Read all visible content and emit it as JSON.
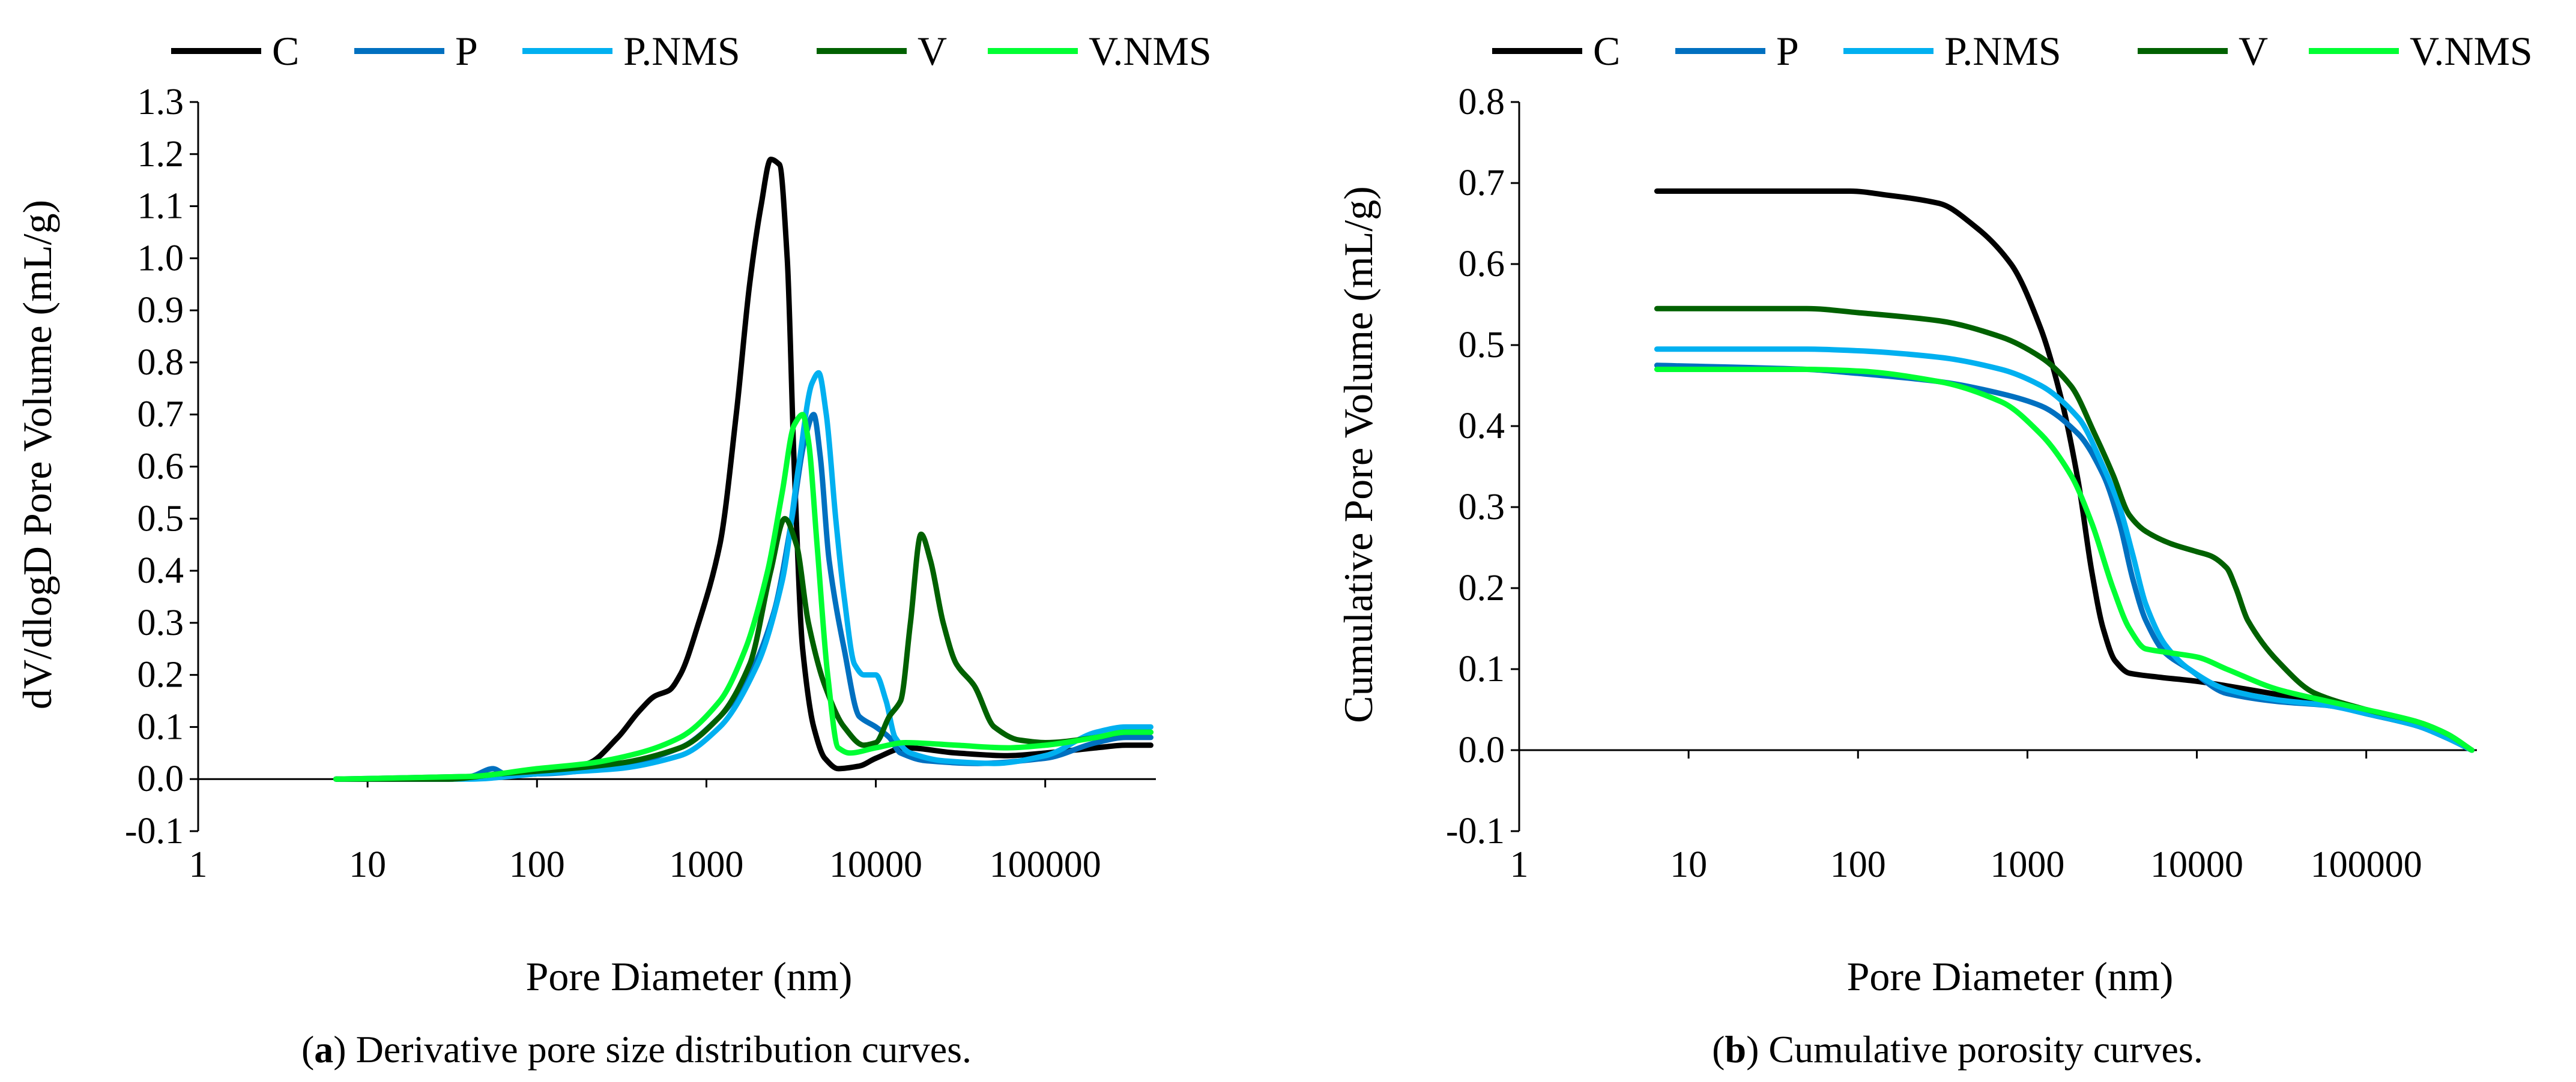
{
  "colors": {
    "C": "#000000",
    "P": "#0070C0",
    "P.NMS": "#00B0F0",
    "V": "#006100",
    "V.NMS": "#00FF33"
  },
  "chart_data": [
    {
      "type": "line",
      "caption_label": "a",
      "caption_text": ") Derivative pore size distribution curves.",
      "xlabel": "Pore Diameter (nm)",
      "ylabel": "dV/dlogD Pore Volume (mL/g)",
      "xscale": "log",
      "xlim": [
        1,
        450000
      ],
      "xticks": [
        1,
        10,
        100,
        1000,
        10000,
        100000
      ],
      "xtick_labels": [
        "1",
        "10",
        "100",
        "1000",
        "10000",
        "100000"
      ],
      "ylim": [
        -0.1,
        1.3
      ],
      "yticks": [
        -0.1,
        0.0,
        0.1,
        0.2,
        0.3,
        0.4,
        0.5,
        0.6,
        0.7,
        0.8,
        0.9,
        1.0,
        1.1,
        1.2,
        1.3
      ],
      "ytick_labels": [
        "-0.1",
        "0.0",
        "0.1",
        "0.2",
        "0.3",
        "0.4",
        "0.5",
        "0.6",
        "0.7",
        "0.8",
        "0.9",
        "1.0",
        "1.1",
        "1.2",
        "1.3"
      ],
      "grid": false,
      "legend_position": "top",
      "series": [
        {
          "name": "C",
          "points": [
            [
              6.5,
              0
            ],
            [
              30,
              0
            ],
            [
              50,
              0.005
            ],
            [
              100,
              0.01
            ],
            [
              200,
              0.03
            ],
            [
              300,
              0.08
            ],
            [
              400,
              0.13
            ],
            [
              500,
              0.16
            ],
            [
              600,
              0.17
            ],
            [
              700,
              0.2
            ],
            [
              900,
              0.3
            ],
            [
              1200,
              0.45
            ],
            [
              1500,
              0.7
            ],
            [
              1800,
              0.95
            ],
            [
              2100,
              1.1
            ],
            [
              2400,
              1.19
            ],
            [
              2700,
              1.18
            ],
            [
              3000,
              1.0
            ],
            [
              3300,
              0.6
            ],
            [
              3700,
              0.25
            ],
            [
              4300,
              0.1
            ],
            [
              5000,
              0.04
            ],
            [
              6000,
              0.02
            ],
            [
              8000,
              0.025
            ],
            [
              10000,
              0.04
            ],
            [
              15000,
              0.06
            ],
            [
              30000,
              0.05
            ],
            [
              60000,
              0.045
            ],
            [
              100000,
              0.05
            ],
            [
              200000,
              0.06
            ],
            [
              300000,
              0.065
            ],
            [
              420000,
              0.065
            ]
          ]
        },
        {
          "name": "P",
          "points": [
            [
              6.5,
              0
            ],
            [
              40,
              0.005
            ],
            [
              55,
              0.02
            ],
            [
              65,
              0.01
            ],
            [
              100,
              0.01
            ],
            [
              300,
              0.025
            ],
            [
              700,
              0.06
            ],
            [
              1200,
              0.12
            ],
            [
              1800,
              0.2
            ],
            [
              2500,
              0.32
            ],
            [
              3200,
              0.5
            ],
            [
              3800,
              0.65
            ],
            [
              4300,
              0.7
            ],
            [
              4700,
              0.62
            ],
            [
              5300,
              0.42
            ],
            [
              6500,
              0.25
            ],
            [
              8000,
              0.12
            ],
            [
              10000,
              0.1
            ],
            [
              12000,
              0.08
            ],
            [
              14000,
              0.05
            ],
            [
              20000,
              0.035
            ],
            [
              40000,
              0.03
            ],
            [
              100000,
              0.04
            ],
            [
              200000,
              0.07
            ],
            [
              300000,
              0.08
            ],
            [
              420000,
              0.08
            ]
          ]
        },
        {
          "name": "P.NMS",
          "points": [
            [
              6.5,
              0
            ],
            [
              40,
              0
            ],
            [
              100,
              0.01
            ],
            [
              300,
              0.02
            ],
            [
              700,
              0.045
            ],
            [
              1200,
              0.1
            ],
            [
              2000,
              0.22
            ],
            [
              2800,
              0.38
            ],
            [
              3500,
              0.6
            ],
            [
              4200,
              0.76
            ],
            [
              4600,
              0.78
            ],
            [
              5100,
              0.7
            ],
            [
              5800,
              0.5
            ],
            [
              6500,
              0.35
            ],
            [
              7500,
              0.22
            ],
            [
              8500,
              0.2
            ],
            [
              10000,
              0.2
            ],
            [
              11500,
              0.15
            ],
            [
              13000,
              0.08
            ],
            [
              16000,
              0.05
            ],
            [
              25000,
              0.035
            ],
            [
              50000,
              0.03
            ],
            [
              100000,
              0.045
            ],
            [
              200000,
              0.09
            ],
            [
              300000,
              0.1
            ],
            [
              420000,
              0.1
            ]
          ]
        },
        {
          "name": "V",
          "points": [
            [
              6.5,
              0
            ],
            [
              30,
              0
            ],
            [
              60,
              0.01
            ],
            [
              100,
              0.015
            ],
            [
              300,
              0.03
            ],
            [
              700,
              0.06
            ],
            [
              1200,
              0.12
            ],
            [
              1800,
              0.22
            ],
            [
              2400,
              0.4
            ],
            [
              2900,
              0.5
            ],
            [
              3400,
              0.45
            ],
            [
              4000,
              0.3
            ],
            [
              5000,
              0.18
            ],
            [
              6500,
              0.1
            ],
            [
              8500,
              0.065
            ],
            [
              10000,
              0.07
            ],
            [
              12000,
              0.12
            ],
            [
              14000,
              0.15
            ],
            [
              16000,
              0.3
            ],
            [
              18500,
              0.47
            ],
            [
              21000,
              0.42
            ],
            [
              25000,
              0.3
            ],
            [
              30000,
              0.22
            ],
            [
              38000,
              0.18
            ],
            [
              50000,
              0.1
            ],
            [
              70000,
              0.075
            ],
            [
              100000,
              0.07
            ],
            [
              200000,
              0.08
            ],
            [
              300000,
              0.09
            ],
            [
              420000,
              0.09
            ]
          ]
        },
        {
          "name": "V.NMS",
          "points": [
            [
              6.5,
              0
            ],
            [
              40,
              0.005
            ],
            [
              100,
              0.02
            ],
            [
              200,
              0.03
            ],
            [
              400,
              0.05
            ],
            [
              700,
              0.08
            ],
            [
              1200,
              0.15
            ],
            [
              1700,
              0.25
            ],
            [
              2300,
              0.4
            ],
            [
              2800,
              0.55
            ],
            [
              3300,
              0.68
            ],
            [
              3700,
              0.7
            ],
            [
              4000,
              0.65
            ],
            [
              4500,
              0.45
            ],
            [
              5200,
              0.2
            ],
            [
              6000,
              0.06
            ],
            [
              7000,
              0.05
            ],
            [
              10000,
              0.06
            ],
            [
              15000,
              0.07
            ],
            [
              30000,
              0.065
            ],
            [
              60000,
              0.06
            ],
            [
              100000,
              0.065
            ],
            [
              200000,
              0.08
            ],
            [
              300000,
              0.09
            ],
            [
              420000,
              0.09
            ]
          ]
        }
      ]
    },
    {
      "type": "line",
      "caption_label": "b",
      "caption_text": ") Cumulative porosity curves.",
      "xlabel": "Pore Diameter (nm)",
      "ylabel": "Cumulative Pore Volume (mL/g)",
      "xscale": "log",
      "xlim": [
        1,
        450000
      ],
      "xticks": [
        1,
        10,
        100,
        1000,
        10000,
        100000
      ],
      "xtick_labels": [
        "1",
        "10",
        "100",
        "1000",
        "10000",
        "100000"
      ],
      "ylim": [
        -0.1,
        0.8
      ],
      "yticks": [
        -0.1,
        0.0,
        0.1,
        0.2,
        0.3,
        0.4,
        0.5,
        0.6,
        0.7,
        0.8
      ],
      "ytick_labels": [
        "-0.1",
        "0.0",
        "0.1",
        "0.2",
        "0.3",
        "0.4",
        "0.5",
        "0.6",
        "0.7",
        "0.8"
      ],
      "grid": false,
      "legend_position": "top",
      "series": [
        {
          "name": "C",
          "points": [
            [
              6.5,
              0.69
            ],
            [
              50,
              0.69
            ],
            [
              90,
              0.69
            ],
            [
              150,
              0.685
            ],
            [
              300,
              0.675
            ],
            [
              500,
              0.645
            ],
            [
              800,
              0.6
            ],
            [
              1200,
              0.52
            ],
            [
              1600,
              0.43
            ],
            [
              2000,
              0.33
            ],
            [
              2400,
              0.22
            ],
            [
              2800,
              0.15
            ],
            [
              3300,
              0.11
            ],
            [
              4000,
              0.095
            ],
            [
              6000,
              0.09
            ],
            [
              10000,
              0.085
            ],
            [
              20000,
              0.075
            ],
            [
              50000,
              0.06
            ],
            [
              100000,
              0.045
            ],
            [
              200000,
              0.03
            ],
            [
              300000,
              0.015
            ],
            [
              420000,
              0
            ]
          ]
        },
        {
          "name": "P",
          "points": [
            [
              6.5,
              0.475
            ],
            [
              50,
              0.47
            ],
            [
              100,
              0.465
            ],
            [
              300,
              0.455
            ],
            [
              700,
              0.44
            ],
            [
              1200,
              0.425
            ],
            [
              2000,
              0.39
            ],
            [
              2800,
              0.34
            ],
            [
              3500,
              0.28
            ],
            [
              4200,
              0.21
            ],
            [
              5000,
              0.16
            ],
            [
              6500,
              0.12
            ],
            [
              9000,
              0.1
            ],
            [
              15000,
              0.07
            ],
            [
              30000,
              0.06
            ],
            [
              60000,
              0.055
            ],
            [
              100000,
              0.045
            ],
            [
              200000,
              0.03
            ],
            [
              300000,
              0.015
            ],
            [
              420000,
              0
            ]
          ]
        },
        {
          "name": "P.NMS",
          "points": [
            [
              6.5,
              0.495
            ],
            [
              50,
              0.495
            ],
            [
              100,
              0.493
            ],
            [
              300,
              0.485
            ],
            [
              700,
              0.47
            ],
            [
              1200,
              0.45
            ],
            [
              2000,
              0.41
            ],
            [
              2800,
              0.35
            ],
            [
              3500,
              0.3
            ],
            [
              4200,
              0.24
            ],
            [
              5000,
              0.18
            ],
            [
              6500,
              0.13
            ],
            [
              9000,
              0.1
            ],
            [
              15000,
              0.075
            ],
            [
              30000,
              0.062
            ],
            [
              60000,
              0.055
            ],
            [
              100000,
              0.045
            ],
            [
              200000,
              0.03
            ],
            [
              300000,
              0.015
            ],
            [
              420000,
              0
            ]
          ]
        },
        {
          "name": "V",
          "points": [
            [
              6.5,
              0.545
            ],
            [
              50,
              0.545
            ],
            [
              100,
              0.54
            ],
            [
              300,
              0.53
            ],
            [
              700,
              0.51
            ],
            [
              1200,
              0.485
            ],
            [
              1800,
              0.45
            ],
            [
              2500,
              0.39
            ],
            [
              3200,
              0.34
            ],
            [
              4000,
              0.29
            ],
            [
              5000,
              0.27
            ],
            [
              7000,
              0.255
            ],
            [
              10000,
              0.245
            ],
            [
              12000,
              0.24
            ],
            [
              15000,
              0.225
            ],
            [
              17000,
              0.2
            ],
            [
              20000,
              0.16
            ],
            [
              30000,
              0.11
            ],
            [
              50000,
              0.07
            ],
            [
              100000,
              0.05
            ],
            [
              200000,
              0.035
            ],
            [
              300000,
              0.02
            ],
            [
              420000,
              0
            ]
          ]
        },
        {
          "name": "V.NMS",
          "points": [
            [
              6.5,
              0.47
            ],
            [
              50,
              0.47
            ],
            [
              100,
              0.468
            ],
            [
              300,
              0.455
            ],
            [
              700,
              0.43
            ],
            [
              1200,
              0.39
            ],
            [
              1800,
              0.34
            ],
            [
              2400,
              0.28
            ],
            [
              3200,
              0.2
            ],
            [
              4000,
              0.15
            ],
            [
              5000,
              0.125
            ],
            [
              7000,
              0.12
            ],
            [
              10000,
              0.115
            ],
            [
              15000,
              0.1
            ],
            [
              30000,
              0.075
            ],
            [
              60000,
              0.06
            ],
            [
              100000,
              0.05
            ],
            [
              200000,
              0.035
            ],
            [
              300000,
              0.02
            ],
            [
              420000,
              0
            ]
          ]
        }
      ]
    }
  ]
}
